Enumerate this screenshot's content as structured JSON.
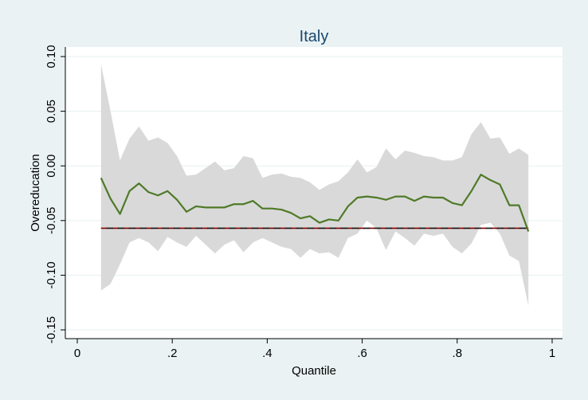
{
  "chart_data": {
    "type": "line",
    "title": "Italy",
    "xlabel": "Quantile",
    "ylabel": "Overeducation",
    "xlim": [
      0,
      1
    ],
    "ylim": [
      -0.15,
      0.1
    ],
    "grid": true,
    "x_ticks": [
      {
        "value": 0,
        "label": "0"
      },
      {
        "value": 0.2,
        "label": ".2"
      },
      {
        "value": 0.4,
        "label": ".4"
      },
      {
        "value": 0.6,
        "label": ".6"
      },
      {
        "value": 0.8,
        "label": ".8"
      },
      {
        "value": 1,
        "label": "1"
      }
    ],
    "y_ticks": [
      {
        "value": -0.15,
        "label": "-0.15"
      },
      {
        "value": -0.1,
        "label": "-0.10"
      },
      {
        "value": -0.05,
        "label": "-0.05"
      },
      {
        "value": 0.0,
        "label": "0.00"
      },
      {
        "value": 0.05,
        "label": "0.05"
      },
      {
        "value": 0.1,
        "label": "0.10"
      }
    ],
    "x": [
      0.05,
      0.07,
      0.09,
      0.11,
      0.13,
      0.15,
      0.17,
      0.19,
      0.21,
      0.23,
      0.25,
      0.27,
      0.29,
      0.31,
      0.33,
      0.35,
      0.37,
      0.39,
      0.41,
      0.43,
      0.45,
      0.47,
      0.49,
      0.51,
      0.53,
      0.55,
      0.57,
      0.59,
      0.61,
      0.63,
      0.65,
      0.67,
      0.69,
      0.71,
      0.73,
      0.75,
      0.77,
      0.79,
      0.81,
      0.83,
      0.85,
      0.87,
      0.89,
      0.91,
      0.93,
      0.95
    ],
    "series": [
      {
        "type": "line",
        "color": "#4f7a28",
        "values": [
          -0.011,
          -0.03,
          -0.044,
          -0.023,
          -0.016,
          -0.024,
          -0.027,
          -0.023,
          -0.031,
          -0.042,
          -0.037,
          -0.038,
          -0.038,
          -0.038,
          -0.035,
          -0.035,
          -0.032,
          -0.039,
          -0.039,
          -0.04,
          -0.043,
          -0.048,
          -0.046,
          -0.052,
          -0.049,
          -0.05,
          -0.037,
          -0.029,
          -0.028,
          -0.029,
          -0.031,
          -0.028,
          -0.028,
          -0.032,
          -0.028,
          -0.029,
          -0.029,
          -0.034,
          -0.036,
          -0.023,
          -0.008,
          -0.013,
          -0.017,
          -0.036,
          -0.036,
          -0.06
        ]
      },
      {
        "type": "band",
        "color": "#d9d9d9",
        "upper": [
          0.093,
          0.05,
          0.005,
          0.025,
          0.036,
          0.023,
          0.026,
          0.021,
          0.009,
          -0.009,
          -0.008,
          -0.002,
          0.004,
          -0.004,
          -0.002,
          0.009,
          0.007,
          -0.011,
          -0.008,
          -0.007,
          -0.01,
          -0.011,
          -0.015,
          -0.022,
          -0.017,
          -0.014,
          -0.006,
          0.006,
          -0.006,
          -0.001,
          0.016,
          0.006,
          0.014,
          0.012,
          0.009,
          0.008,
          0.005,
          0.005,
          0.008,
          0.029,
          0.04,
          0.025,
          0.026,
          0.011,
          0.016,
          0.01
        ],
        "lower": [
          -0.114,
          -0.108,
          -0.09,
          -0.07,
          -0.066,
          -0.07,
          -0.078,
          -0.065,
          -0.07,
          -0.074,
          -0.064,
          -0.072,
          -0.08,
          -0.072,
          -0.068,
          -0.079,
          -0.07,
          -0.066,
          -0.07,
          -0.074,
          -0.076,
          -0.084,
          -0.076,
          -0.08,
          -0.079,
          -0.084,
          -0.066,
          -0.062,
          -0.05,
          -0.057,
          -0.077,
          -0.06,
          -0.066,
          -0.073,
          -0.062,
          -0.064,
          -0.062,
          -0.074,
          -0.08,
          -0.071,
          -0.054,
          -0.052,
          -0.062,
          -0.082,
          -0.087,
          -0.128
        ]
      },
      {
        "type": "hline",
        "value": -0.057,
        "colors": [
          "#8b0000",
          "#111111"
        ]
      }
    ]
  }
}
